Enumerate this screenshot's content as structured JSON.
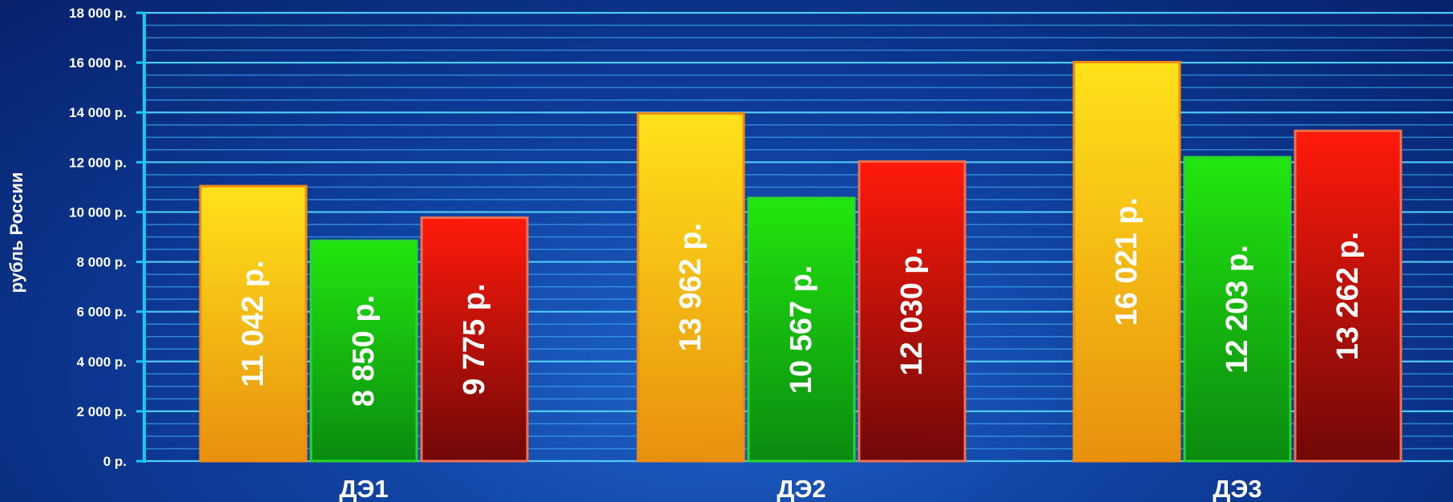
{
  "chart_data": {
    "type": "bar",
    "title": "",
    "xlabel": "",
    "ylabel": "рубль России",
    "categories": [
      "ДЭ1",
      "ДЭ2",
      "ДЭ3"
    ],
    "series": [
      {
        "values": [
          11042,
          13962,
          16021
        ],
        "labels": [
          "11 042 р.",
          "13 962 р.",
          "16 021 р."
        ],
        "color_top": "#ffe21a",
        "color_bottom": "#e8900e",
        "border": "#f08a10"
      },
      {
        "values": [
          8850,
          10567,
          12203
        ],
        "labels": [
          "8 850 р.",
          "10 567 р.",
          "12 203 р."
        ],
        "color_top": "#22e60e",
        "color_bottom": "#0a8a10",
        "border": "#2ad42a"
      },
      {
        "values": [
          9775,
          12030,
          13262
        ],
        "labels": [
          "9 775 р.",
          "12 030 р.",
          "13 262 р."
        ],
        "color_top": "#ff1a0a",
        "color_bottom": "#700808",
        "border": "#f07050"
      }
    ],
    "ylim": [
      0,
      18000
    ],
    "yticks": [
      0,
      2000,
      4000,
      6000,
      8000,
      10000,
      12000,
      14000,
      16000,
      18000
    ],
    "ytick_labels": [
      "0 р.",
      "2 000 р.",
      "4 000 р.",
      "6 000 р.",
      "8 000 р.",
      "10 000 р.",
      "12 000 р.",
      "14 000 р.",
      "16 000 р.",
      "18 000 р."
    ],
    "grid": true,
    "legend": "none",
    "colors": {
      "axis": "#19c9f2",
      "grid_major": "#4fcaf5",
      "grid_minor": "#3aa2e8"
    }
  }
}
